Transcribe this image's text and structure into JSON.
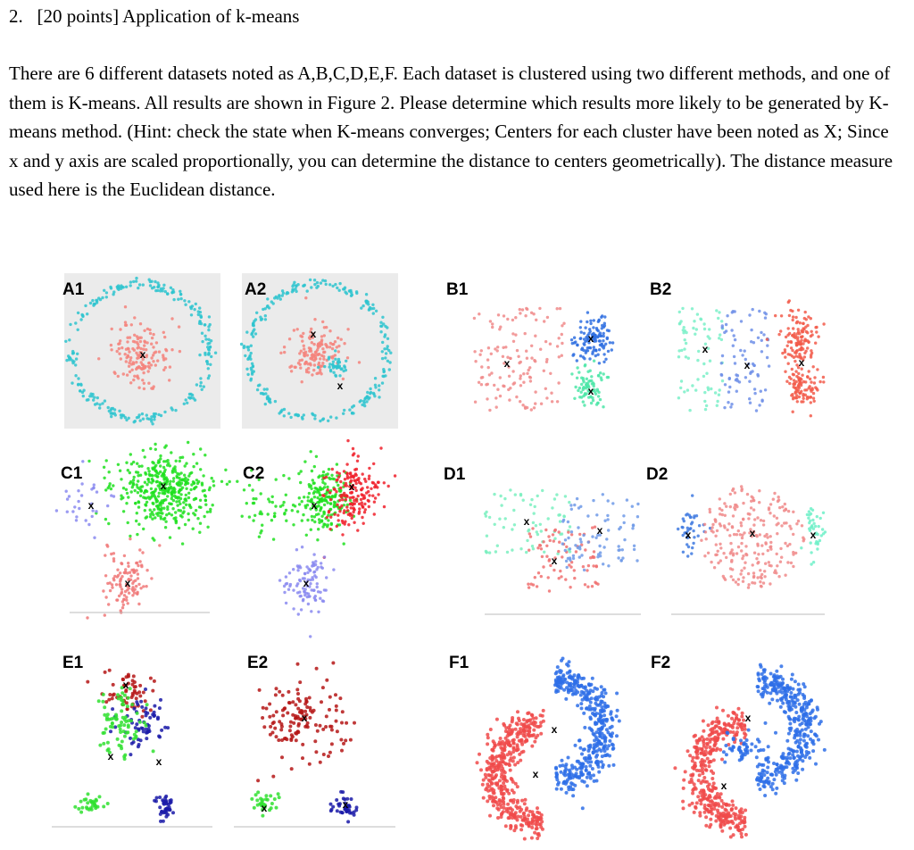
{
  "question": {
    "number": "2.",
    "heading": "[20 points] Application of k-means",
    "body": "There are 6 different datasets noted as A,B,C,D,E,F. Each dataset is clustered using two different methods, and one of them is K-means. All results are shown in Figure 2. Please determine which results more likely to be generated by K-means method. (Hint: check the state when K-means converges; Centers for each cluster have been noted as X; Since x and y axis are scaled proportionally, you can determine the distance to centers geometrically). The distance measure used here is the Euclidean distance."
  },
  "figure": {
    "panels": [
      {
        "id": "A1",
        "label": "A1",
        "dataset": "A",
        "pattern": "ring",
        "background": "#ebebeb",
        "cluster_colors": [
          "#f4837b",
          "#2ec4cf"
        ],
        "centers_marked": 2,
        "center_mark": "x"
      },
      {
        "id": "A2",
        "label": "A2",
        "dataset": "A",
        "pattern": "ring",
        "background": "#ebebeb",
        "cluster_colors": [
          "#f4837b",
          "#2ec4cf"
        ],
        "centers_marked": 2,
        "center_mark": "x"
      },
      {
        "id": "B1",
        "label": "B1",
        "dataset": "B",
        "pattern": "blobs",
        "cluster_colors": [
          "#f08a8a",
          "#2f6fe0",
          "#4ee6a8"
        ],
        "centers_marked": 3,
        "center_mark": "x"
      },
      {
        "id": "B2",
        "label": "B2",
        "dataset": "B",
        "pattern": "blobs",
        "cluster_colors": [
          "#7af0c8",
          "#6f8fe8",
          "#f25a4a"
        ],
        "centers_marked": 3,
        "center_mark": "x"
      },
      {
        "id": "C1",
        "label": "C1",
        "dataset": "C",
        "pattern": "three_groups",
        "cluster_colors": [
          "#1fe01f",
          "#8a8af0",
          "#f07878"
        ],
        "centers_marked": 3,
        "center_mark": "x"
      },
      {
        "id": "C2",
        "label": "C2",
        "dataset": "C",
        "pattern": "three_groups",
        "cluster_colors": [
          "#1fe01f",
          "#f0202a",
          "#8a8af0"
        ],
        "centers_marked": 3,
        "center_mark": "x"
      },
      {
        "id": "D1",
        "label": "D1",
        "dataset": "D",
        "pattern": "disc",
        "cluster_colors": [
          "#7af0c0",
          "#f07070",
          "#6f9ae8"
        ],
        "centers_marked": 3,
        "center_mark": "x"
      },
      {
        "id": "D2",
        "label": "D2",
        "dataset": "D",
        "pattern": "disc",
        "cluster_colors": [
          "#3f7ae0",
          "#f08a8a",
          "#6ff0c8"
        ],
        "centers_marked": 3,
        "center_mark": "x"
      },
      {
        "id": "E1",
        "label": "E1",
        "dataset": "E",
        "pattern": "triangle",
        "cluster_colors": [
          "#b51616",
          "#1a1aa8",
          "#30e030"
        ],
        "centers_marked": 3,
        "center_mark": "x"
      },
      {
        "id": "E2",
        "label": "E2",
        "dataset": "E",
        "pattern": "triangle",
        "cluster_colors": [
          "#b51616",
          "#30e030",
          "#1a1aa8"
        ],
        "centers_marked": 3,
        "center_mark": "x"
      },
      {
        "id": "F1",
        "label": "F1",
        "dataset": "F",
        "pattern": "moons",
        "cluster_colors": [
          "#2e6ee8",
          "#f04a4a"
        ],
        "centers_marked": 2,
        "center_mark": "x"
      },
      {
        "id": "F2",
        "label": "F2",
        "dataset": "F",
        "pattern": "moons",
        "cluster_colors": [
          "#2e6ee8",
          "#f04a4a"
        ],
        "centers_marked": 2,
        "center_mark": "x"
      }
    ]
  }
}
